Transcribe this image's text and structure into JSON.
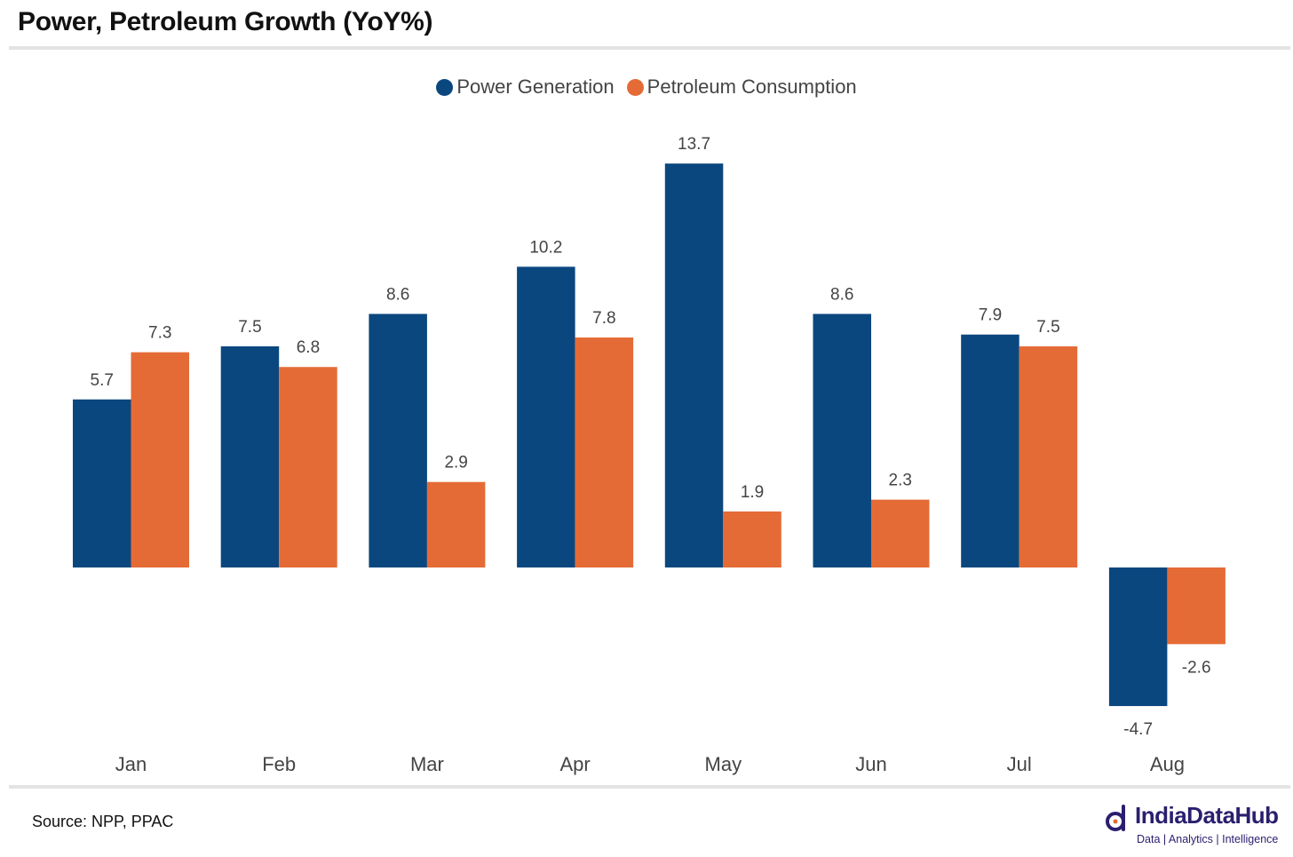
{
  "title": "Power, Petroleum Growth (YoY%)",
  "source": "Source: NPP, PPAC",
  "brand": {
    "name": "IndiaDataHub",
    "tagline": "Data | Analytics | Intelligence"
  },
  "colors": {
    "power": "#0b477f",
    "petroleum": "#e56b36",
    "rule": "#e3e3e3",
    "brand": "#2a1f6e"
  },
  "chart_data": {
    "type": "bar",
    "title": "Power, Petroleum Growth (YoY%)",
    "xlabel": "",
    "ylabel": "",
    "categories": [
      "Jan",
      "Feb",
      "Mar",
      "Apr",
      "May",
      "Jun",
      "Jul",
      "Aug"
    ],
    "series": [
      {
        "name": "Power Generation",
        "color": "#0b477f",
        "values": [
          5.7,
          7.5,
          8.6,
          10.2,
          13.7,
          8.6,
          7.9,
          -4.7
        ]
      },
      {
        "name": "Petroleum Consumption",
        "color": "#e56b36",
        "values": [
          7.3,
          6.8,
          2.9,
          7.8,
          1.9,
          2.3,
          7.5,
          -2.6
        ]
      }
    ],
    "ylim": [
      -5.5,
      15
    ],
    "grid": false,
    "legend": "top-center",
    "data_labels": true
  }
}
